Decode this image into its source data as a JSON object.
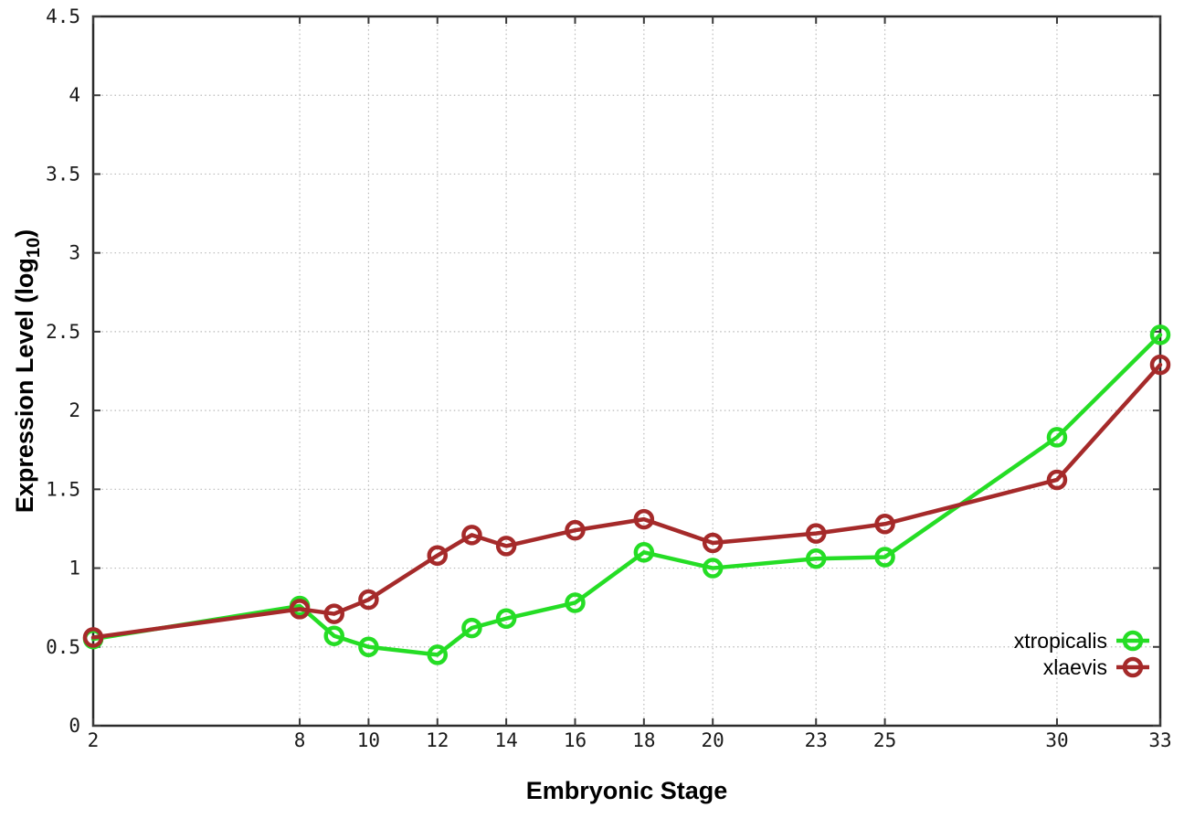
{
  "chart_data": {
    "type": "line",
    "title": "",
    "xlabel": "Embryonic Stage",
    "ylabel": {
      "prefix": "Expression Level (log",
      "subscript": "10",
      "suffix": ")"
    },
    "xlim": [
      2,
      33
    ],
    "ylim": [
      0,
      4.5
    ],
    "grid": true,
    "legend_position": "bottom-right",
    "x": [
      2,
      8,
      9,
      10,
      12,
      13,
      14,
      16,
      18,
      20,
      23,
      25,
      30,
      33
    ],
    "x_ticks": [
      2,
      8,
      10,
      12,
      14,
      16,
      18,
      20,
      23,
      25,
      30,
      33
    ],
    "x_tick_labels": [
      "2",
      "8",
      "10",
      "12",
      "14",
      "16",
      "18",
      "20",
      "23",
      "25",
      "30",
      "33"
    ],
    "y_ticks": [
      0,
      0.5,
      1,
      1.5,
      2,
      2.5,
      3,
      3.5,
      4,
      4.5
    ],
    "y_tick_labels": [
      "0",
      "0.5",
      "1",
      "1.5",
      "2",
      "2.5",
      "3",
      "3.5",
      "4",
      "4.5"
    ],
    "series": [
      {
        "name": "xtropicalis",
        "color": "#25dd25",
        "values": [
          0.55,
          0.76,
          0.57,
          0.5,
          0.45,
          0.62,
          0.68,
          0.78,
          1.1,
          1.0,
          1.06,
          1.07,
          1.83,
          2.48
        ]
      },
      {
        "name": "xlaevis",
        "color": "#a52a2a",
        "values": [
          0.56,
          0.74,
          0.71,
          0.8,
          1.08,
          1.21,
          1.14,
          1.24,
          1.31,
          1.16,
          1.22,
          1.28,
          1.56,
          2.29
        ]
      }
    ],
    "style": {
      "grid_color": "#b9b9b9",
      "axis_color": "#2a2a2a",
      "tick_color": "#3a3a3a",
      "background": "#ffffff",
      "line_width": 4.5,
      "marker_radius": 9
    }
  }
}
